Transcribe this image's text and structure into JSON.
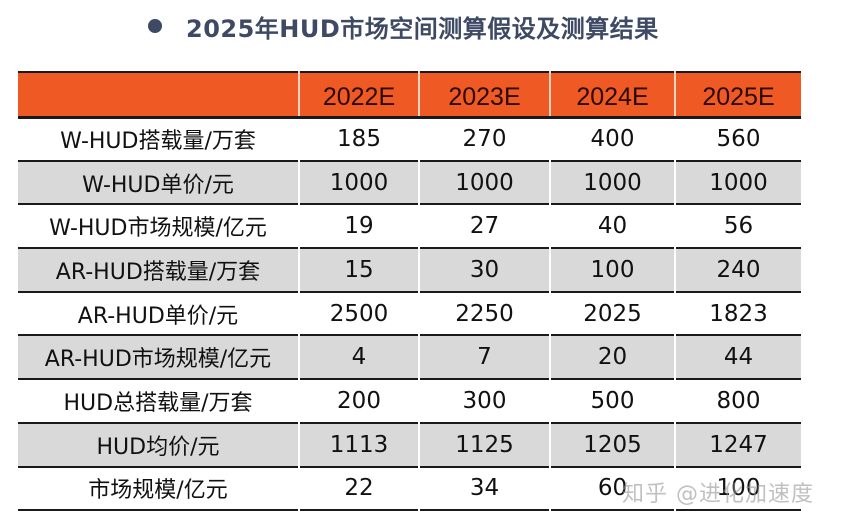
{
  "title": "2025年HUD市场空间测算假设及测算结果",
  "table": {
    "headers": [
      "",
      "2022E",
      "2023E",
      "2024E",
      "2025E"
    ],
    "rows": [
      {
        "label": "W-HUD搭载量/万套",
        "values": [
          "185",
          "270",
          "400",
          "560"
        ],
        "shaded": false
      },
      {
        "label": "W-HUD单价/元",
        "values": [
          "1000",
          "1000",
          "1000",
          "1000"
        ],
        "shaded": true
      },
      {
        "label": "W-HUD市场规模/亿元",
        "values": [
          "19",
          "27",
          "40",
          "56"
        ],
        "shaded": false
      },
      {
        "label": "AR-HUD搭载量/万套",
        "values": [
          "15",
          "30",
          "100",
          "240"
        ],
        "shaded": true
      },
      {
        "label": "AR-HUD单价/元",
        "values": [
          "2500",
          "2250",
          "2025",
          "1823"
        ],
        "shaded": false
      },
      {
        "label": "AR-HUD市场规模/亿元",
        "values": [
          "4",
          "7",
          "20",
          "44"
        ],
        "shaded": true
      },
      {
        "label": "HUD总搭载量/万套",
        "values": [
          "200",
          "300",
          "500",
          "800"
        ],
        "shaded": false
      },
      {
        "label": "HUD均价/元",
        "values": [
          "1113",
          "1125",
          "1205",
          "1247"
        ],
        "shaded": true
      },
      {
        "label": "市场规模/亿元",
        "values": [
          "22",
          "34",
          "60",
          "100"
        ],
        "shaded": false
      }
    ]
  },
  "watermark": "知乎 @进化加速度",
  "colors": {
    "header_bg": "#ef5a24",
    "shaded_row_bg": "#d9d9d9",
    "title_color": "#3e4a63"
  }
}
